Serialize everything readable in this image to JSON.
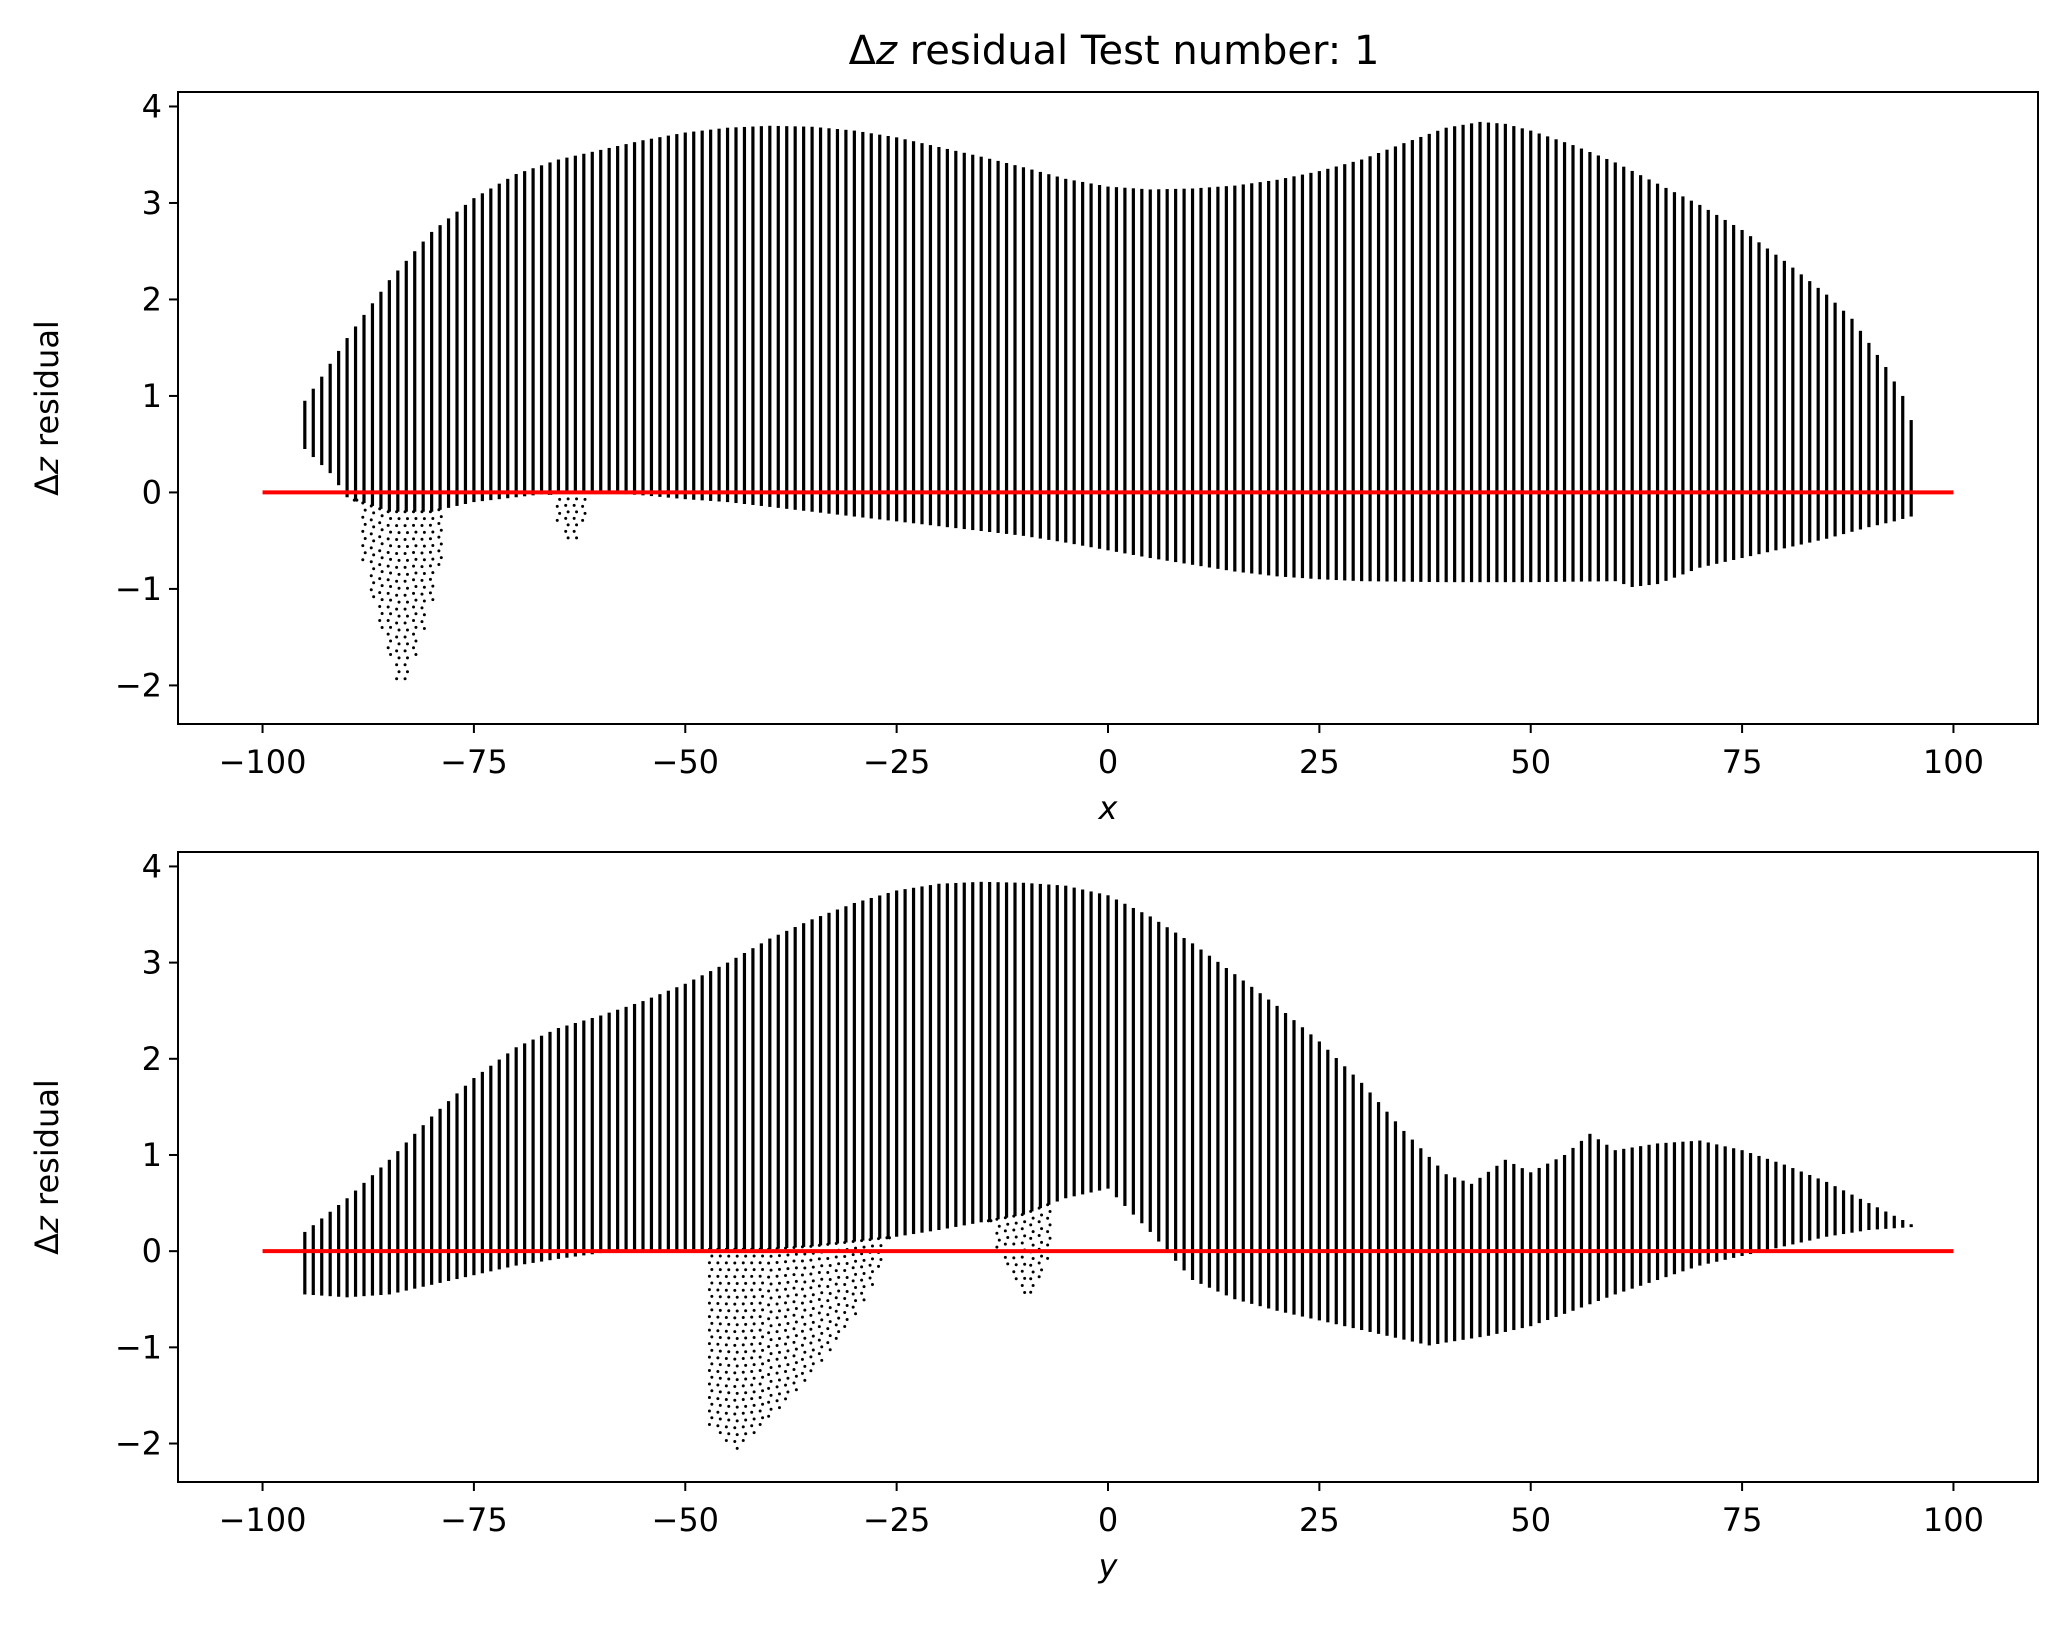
{
  "figure": {
    "title": "Δz residual Test number: 1",
    "title_prefix": "Δ",
    "title_italic": "z",
    "title_suffix": " residual Test number: 1"
  },
  "colors": {
    "points": "#000000",
    "zero_line": "#ff0000",
    "axes": "#000000",
    "background": "#ffffff"
  },
  "chart_data": [
    {
      "type": "scatter",
      "xlabel": "x",
      "ylabel": "Δz residual",
      "xlim": [
        -110,
        110
      ],
      "ylim": [
        -2.4,
        4.15
      ],
      "xticks": [
        -100,
        -75,
        -50,
        -25,
        0,
        25,
        50,
        75,
        100
      ],
      "xtick_labels": [
        "−100",
        "−75",
        "−50",
        "−25",
        "0",
        "25",
        "50",
        "75",
        "100"
      ],
      "yticks": [
        -2,
        -1,
        0,
        1,
        2,
        3,
        4
      ],
      "ytick_labels": [
        "−2",
        "−1",
        "0",
        "1",
        "2",
        "3",
        "4"
      ],
      "grid": false,
      "legend": "none",
      "reference_line": {
        "y": 0,
        "x_range": [
          -100,
          100
        ],
        "color": "#ff0000"
      },
      "point_columns": {
        "x_start": -95,
        "x_end": 95,
        "step": 1
      },
      "upper_envelope": [
        [
          -95,
          0.95
        ],
        [
          -93,
          1.2
        ],
        [
          -90,
          1.6
        ],
        [
          -85,
          2.2
        ],
        [
          -80,
          2.7
        ],
        [
          -75,
          3.05
        ],
        [
          -70,
          3.3
        ],
        [
          -65,
          3.45
        ],
        [
          -60,
          3.55
        ],
        [
          -55,
          3.65
        ],
        [
          -50,
          3.73
        ],
        [
          -45,
          3.78
        ],
        [
          -40,
          3.8
        ],
        [
          -35,
          3.79
        ],
        [
          -30,
          3.75
        ],
        [
          -25,
          3.68
        ],
        [
          -20,
          3.58
        ],
        [
          -15,
          3.48
        ],
        [
          -10,
          3.37
        ],
        [
          -5,
          3.25
        ],
        [
          0,
          3.17
        ],
        [
          5,
          3.14
        ],
        [
          10,
          3.15
        ],
        [
          15,
          3.18
        ],
        [
          20,
          3.24
        ],
        [
          25,
          3.33
        ],
        [
          30,
          3.45
        ],
        [
          35,
          3.62
        ],
        [
          40,
          3.78
        ],
        [
          44,
          3.84
        ],
        [
          47,
          3.82
        ],
        [
          50,
          3.75
        ],
        [
          55,
          3.6
        ],
        [
          60,
          3.42
        ],
        [
          65,
          3.2
        ],
        [
          70,
          2.98
        ],
        [
          75,
          2.72
        ],
        [
          80,
          2.4
        ],
        [
          85,
          2.05
        ],
        [
          88,
          1.8
        ],
        [
          90,
          1.55
        ],
        [
          92,
          1.3
        ],
        [
          94,
          1.0
        ],
        [
          95,
          0.75
        ]
      ],
      "lower_envelope": [
        [
          -95,
          0.45
        ],
        [
          -92,
          0.2
        ],
        [
          -90,
          -0.05
        ],
        [
          -85,
          -0.2
        ],
        [
          -80,
          -0.2
        ],
        [
          -75,
          -0.1
        ],
        [
          -70,
          -0.05
        ],
        [
          -65,
          0.0
        ],
        [
          -60,
          0.0
        ],
        [
          -55,
          -0.03
        ],
        [
          -50,
          -0.07
        ],
        [
          -45,
          -0.1
        ],
        [
          -40,
          -0.15
        ],
        [
          -35,
          -0.2
        ],
        [
          -30,
          -0.25
        ],
        [
          -25,
          -0.3
        ],
        [
          -20,
          -0.35
        ],
        [
          -15,
          -0.4
        ],
        [
          -10,
          -0.45
        ],
        [
          -5,
          -0.52
        ],
        [
          0,
          -0.6
        ],
        [
          5,
          -0.68
        ],
        [
          10,
          -0.75
        ],
        [
          15,
          -0.82
        ],
        [
          20,
          -0.87
        ],
        [
          25,
          -0.9
        ],
        [
          30,
          -0.92
        ],
        [
          40,
          -0.93
        ],
        [
          50,
          -0.93
        ],
        [
          60,
          -0.92
        ],
        [
          62,
          -0.98
        ],
        [
          65,
          -0.95
        ],
        [
          68,
          -0.85
        ],
        [
          70,
          -0.78
        ],
        [
          75,
          -0.68
        ],
        [
          80,
          -0.58
        ],
        [
          85,
          -0.48
        ],
        [
          90,
          -0.36
        ],
        [
          93,
          -0.3
        ],
        [
          95,
          -0.25
        ]
      ],
      "outlier_dips": [
        {
          "x_range": [
            -89,
            -79
          ],
          "center": -83.5,
          "min": -2.05
        },
        {
          "x_range": [
            -66,
            -61
          ],
          "center": -63.5,
          "min": -0.55
        }
      ]
    },
    {
      "type": "scatter",
      "xlabel": "y",
      "ylabel": "Δz residual",
      "xlim": [
        -110,
        110
      ],
      "ylim": [
        -2.4,
        4.15
      ],
      "xticks": [
        -100,
        -75,
        -50,
        -25,
        0,
        25,
        50,
        75,
        100
      ],
      "xtick_labels": [
        "−100",
        "−75",
        "−50",
        "−25",
        "0",
        "25",
        "50",
        "75",
        "100"
      ],
      "yticks": [
        -2,
        -1,
        0,
        1,
        2,
        3,
        4
      ],
      "ytick_labels": [
        "−2",
        "−1",
        "0",
        "1",
        "2",
        "3",
        "4"
      ],
      "grid": false,
      "legend": "none",
      "reference_line": {
        "y": 0,
        "x_range": [
          -100,
          100
        ],
        "color": "#ff0000"
      },
      "point_columns": {
        "x_start": -95,
        "x_end": 95,
        "step": 1
      },
      "upper_envelope": [
        [
          -95,
          0.2
        ],
        [
          -90,
          0.55
        ],
        [
          -85,
          0.95
        ],
        [
          -80,
          1.4
        ],
        [
          -75,
          1.8
        ],
        [
          -70,
          2.12
        ],
        [
          -65,
          2.32
        ],
        [
          -60,
          2.45
        ],
        [
          -55,
          2.6
        ],
        [
          -50,
          2.78
        ],
        [
          -45,
          3.0
        ],
        [
          -40,
          3.25
        ],
        [
          -35,
          3.45
        ],
        [
          -30,
          3.62
        ],
        [
          -25,
          3.75
        ],
        [
          -20,
          3.82
        ],
        [
          -15,
          3.84
        ],
        [
          -10,
          3.83
        ],
        [
          -5,
          3.8
        ],
        [
          0,
          3.7
        ],
        [
          5,
          3.48
        ],
        [
          10,
          3.2
        ],
        [
          15,
          2.88
        ],
        [
          20,
          2.55
        ],
        [
          25,
          2.18
        ],
        [
          30,
          1.75
        ],
        [
          35,
          1.25
        ],
        [
          40,
          0.8
        ],
        [
          43,
          0.7
        ],
        [
          47,
          0.95
        ],
        [
          50,
          0.82
        ],
        [
          54,
          1.0
        ],
        [
          57,
          1.22
        ],
        [
          60,
          1.05
        ],
        [
          65,
          1.12
        ],
        [
          70,
          1.15
        ],
        [
          75,
          1.05
        ],
        [
          80,
          0.9
        ],
        [
          85,
          0.72
        ],
        [
          90,
          0.5
        ],
        [
          95,
          0.28
        ]
      ],
      "lower_envelope": [
        [
          -95,
          -0.45
        ],
        [
          -90,
          -0.48
        ],
        [
          -85,
          -0.45
        ],
        [
          -80,
          -0.35
        ],
        [
          -75,
          -0.25
        ],
        [
          -70,
          -0.15
        ],
        [
          -65,
          -0.08
        ],
        [
          -60,
          -0.02
        ],
        [
          -55,
          0.0
        ],
        [
          -50,
          0.02
        ],
        [
          -45,
          0.02
        ],
        [
          -40,
          0.02
        ],
        [
          -35,
          0.05
        ],
        [
          -30,
          0.1
        ],
        [
          -25,
          0.15
        ],
        [
          -20,
          0.22
        ],
        [
          -15,
          0.3
        ],
        [
          -10,
          0.38
        ],
        [
          -5,
          0.55
        ],
        [
          0,
          0.65
        ],
        [
          5,
          0.2
        ],
        [
          10,
          -0.3
        ],
        [
          15,
          -0.5
        ],
        [
          20,
          -0.62
        ],
        [
          25,
          -0.72
        ],
        [
          30,
          -0.82
        ],
        [
          35,
          -0.92
        ],
        [
          38,
          -0.98
        ],
        [
          40,
          -0.95
        ],
        [
          45,
          -0.88
        ],
        [
          50,
          -0.78
        ],
        [
          55,
          -0.62
        ],
        [
          60,
          -0.45
        ],
        [
          65,
          -0.3
        ],
        [
          70,
          -0.15
        ],
        [
          75,
          -0.05
        ],
        [
          80,
          0.05
        ],
        [
          85,
          0.15
        ],
        [
          90,
          0.22
        ],
        [
          95,
          0.25
        ]
      ],
      "outlier_dips": [
        {
          "x_range": [
            -47,
            -26
          ],
          "center": -44,
          "min": -2.05
        },
        {
          "x_range": [
            -14,
            -7
          ],
          "center": -9.5,
          "min": -0.5
        }
      ]
    }
  ]
}
